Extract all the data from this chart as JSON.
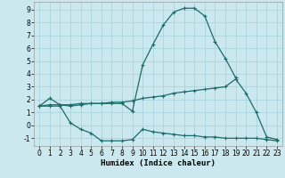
{
  "xlabel": "Humidex (Indice chaleur)",
  "xlim": [
    -0.5,
    23.5
  ],
  "ylim": [
    -1.6,
    9.6
  ],
  "xticks": [
    0,
    1,
    2,
    3,
    4,
    5,
    6,
    7,
    8,
    9,
    10,
    11,
    12,
    13,
    14,
    15,
    16,
    17,
    18,
    19,
    20,
    21,
    22,
    23
  ],
  "yticks": [
    -1,
    0,
    1,
    2,
    3,
    4,
    5,
    6,
    7,
    8,
    9
  ],
  "bg_color": "#cce8ef",
  "line_color": "#1a6b6b",
  "grid_color": "#aad4dc",
  "line1_x": [
    0,
    1,
    2,
    3,
    4,
    5,
    6,
    7,
    8,
    9,
    10,
    11,
    12,
    13,
    14,
    15,
    16,
    17,
    18,
    19
  ],
  "line1_y": [
    1.5,
    2.1,
    1.6,
    1.5,
    1.6,
    1.7,
    1.7,
    1.7,
    1.7,
    1.1,
    4.7,
    6.3,
    7.8,
    8.8,
    9.1,
    9.1,
    8.5,
    6.5,
    5.2,
    3.7
  ],
  "line2_x": [
    0,
    1,
    2,
    3,
    4,
    5,
    6,
    7,
    8,
    9,
    10,
    11,
    12,
    13,
    14,
    15,
    16,
    17,
    18,
    19,
    20,
    21,
    22,
    23
  ],
  "line2_y": [
    1.5,
    1.6,
    1.6,
    1.6,
    1.7,
    1.7,
    1.7,
    1.8,
    1.8,
    1.9,
    2.1,
    2.2,
    2.3,
    2.5,
    2.6,
    2.7,
    2.8,
    2.9,
    3.0,
    3.6,
    2.5,
    1.0,
    -0.9,
    -1.1
  ],
  "line3_x": [
    0,
    1,
    2,
    3,
    4,
    5,
    6,
    7,
    8,
    9,
    10,
    11,
    12,
    13,
    14,
    15,
    16,
    17,
    18,
    19,
    20,
    21,
    22,
    23
  ],
  "line3_y": [
    1.5,
    1.5,
    1.5,
    0.2,
    -0.3,
    -0.6,
    -1.2,
    -1.2,
    -1.2,
    -1.1,
    -0.3,
    -0.5,
    -0.6,
    -0.7,
    -0.8,
    -0.8,
    -0.9,
    -0.9,
    -1.0,
    -1.0,
    -1.0,
    -1.0,
    -1.1,
    -1.2
  ]
}
